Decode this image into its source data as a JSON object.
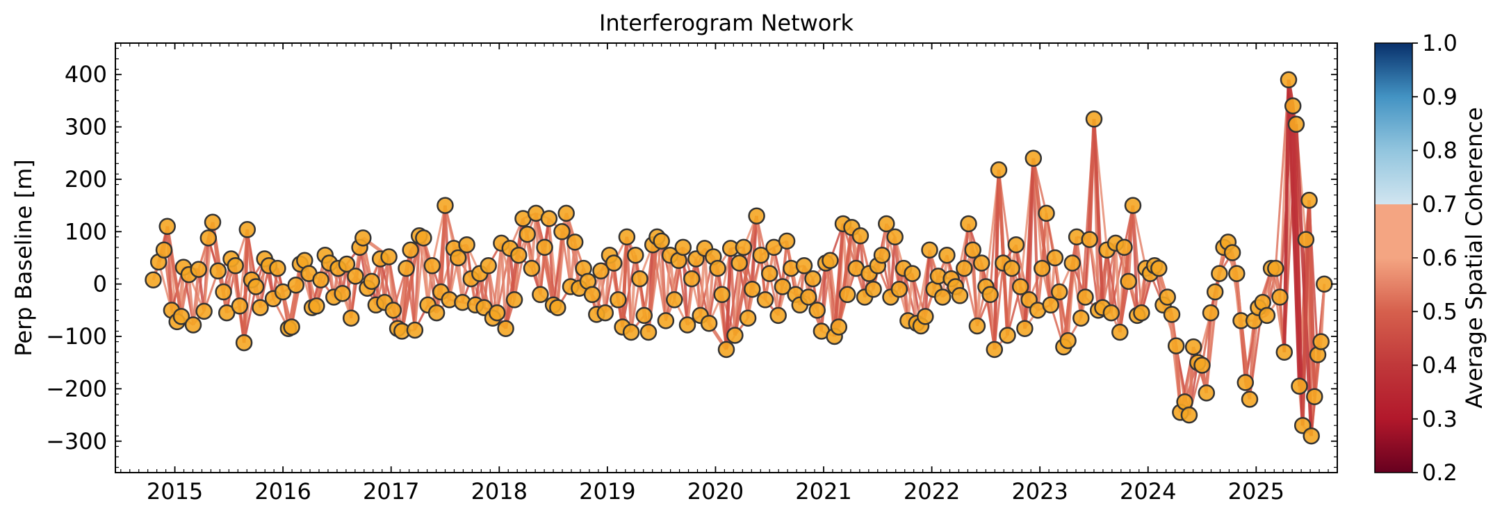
{
  "chart_data": {
    "type": "scatter",
    "title": "Interferogram Network",
    "ylabel": "Perp Baseline [m]",
    "xlabel": "",
    "xlim": [
      2014.45,
      2025.75
    ],
    "ylim": [
      -360,
      460
    ],
    "x_ticks": [
      "2015",
      "2016",
      "2017",
      "2018",
      "2019",
      "2020",
      "2021",
      "2022",
      "2023",
      "2024",
      "2025"
    ],
    "y_ticks": [
      "400",
      "300",
      "200",
      "100",
      "0",
      "−100",
      "−200",
      "−300"
    ],
    "y_tick_values": [
      400,
      300,
      200,
      100,
      0,
      -100,
      -200,
      -300
    ],
    "colorbar": {
      "label": "Average Spatial Coherence",
      "range": [
        0.2,
        1.0
      ],
      "ticks": [
        "1.0",
        "0.9",
        "0.8",
        "0.7",
        "0.6",
        "0.5",
        "0.4",
        "0.3",
        "0.2"
      ],
      "tick_values": [
        1.0,
        0.9,
        0.8,
        0.7,
        0.6,
        0.5,
        0.4,
        0.3,
        0.2
      ],
      "colormap": "RdBu (diverging, red low / blue high)",
      "top_color": "#08306b",
      "mid_color": "#f7f7f7",
      "bottom_color": "#67001f"
    },
    "marker_fill": "#f5a623",
    "marker_edge": "#333333",
    "edge_color_typical": "#d9604f",
    "acquisitions": [
      [
        2014.8,
        8
      ],
      [
        2014.85,
        42
      ],
      [
        2014.9,
        65
      ],
      [
        2014.93,
        110
      ],
      [
        2014.97,
        -50
      ],
      [
        2015.02,
        -72
      ],
      [
        2015.06,
        -62
      ],
      [
        2015.08,
        32
      ],
      [
        2015.13,
        18
      ],
      [
        2015.17,
        -78
      ],
      [
        2015.22,
        28
      ],
      [
        2015.27,
        -52
      ],
      [
        2015.31,
        88
      ],
      [
        2015.35,
        118
      ],
      [
        2015.4,
        25
      ],
      [
        2015.45,
        -15
      ],
      [
        2015.48,
        -55
      ],
      [
        2015.52,
        48
      ],
      [
        2015.56,
        35
      ],
      [
        2015.6,
        -42
      ],
      [
        2015.64,
        -112
      ],
      [
        2015.67,
        104
      ],
      [
        2015.71,
        8
      ],
      [
        2015.75,
        -5
      ],
      [
        2015.79,
        -45
      ],
      [
        2015.83,
        48
      ],
      [
        2015.87,
        35
      ],
      [
        2015.91,
        -28
      ],
      [
        2015.95,
        30
      ],
      [
        2016.0,
        -15
      ],
      [
        2016.05,
        -85
      ],
      [
        2016.08,
        -82
      ],
      [
        2016.12,
        -2
      ],
      [
        2016.16,
        38
      ],
      [
        2016.2,
        45
      ],
      [
        2016.24,
        20
      ],
      [
        2016.27,
        -45
      ],
      [
        2016.31,
        -42
      ],
      [
        2016.35,
        8
      ],
      [
        2016.39,
        55
      ],
      [
        2016.43,
        40
      ],
      [
        2016.47,
        -25
      ],
      [
        2016.51,
        30
      ],
      [
        2016.55,
        -18
      ],
      [
        2016.59,
        38
      ],
      [
        2016.63,
        -65
      ],
      [
        2016.67,
        15
      ],
      [
        2016.71,
        70
      ],
      [
        2016.74,
        88
      ],
      [
        2016.78,
        -8
      ],
      [
        2016.82,
        5
      ],
      [
        2016.86,
        -40
      ],
      [
        2016.9,
        48
      ],
      [
        2016.94,
        -35
      ],
      [
        2016.98,
        52
      ],
      [
        2017.02,
        -50
      ],
      [
        2017.06,
        -85
      ],
      [
        2017.1,
        -90
      ],
      [
        2017.14,
        30
      ],
      [
        2017.18,
        65
      ],
      [
        2017.22,
        -88
      ],
      [
        2017.26,
        92
      ],
      [
        2017.3,
        88
      ],
      [
        2017.34,
        -40
      ],
      [
        2017.38,
        35
      ],
      [
        2017.42,
        -55
      ],
      [
        2017.46,
        -15
      ],
      [
        2017.5,
        150
      ],
      [
        2017.54,
        -30
      ],
      [
        2017.58,
        68
      ],
      [
        2017.62,
        50
      ],
      [
        2017.66,
        -35
      ],
      [
        2017.7,
        75
      ],
      [
        2017.74,
        10
      ],
      [
        2017.78,
        -40
      ],
      [
        2017.82,
        20
      ],
      [
        2017.86,
        -45
      ],
      [
        2017.9,
        35
      ],
      [
        2017.94,
        -65
      ],
      [
        2017.98,
        -55
      ],
      [
        2018.02,
        78
      ],
      [
        2018.06,
        -85
      ],
      [
        2018.1,
        68
      ],
      [
        2018.14,
        -30
      ],
      [
        2018.18,
        55
      ],
      [
        2018.22,
        125
      ],
      [
        2018.26,
        95
      ],
      [
        2018.3,
        30
      ],
      [
        2018.34,
        135
      ],
      [
        2018.38,
        -20
      ],
      [
        2018.42,
        70
      ],
      [
        2018.46,
        125
      ],
      [
        2018.5,
        -40
      ],
      [
        2018.54,
        -45
      ],
      [
        2018.58,
        100
      ],
      [
        2018.62,
        135
      ],
      [
        2018.66,
        -5
      ],
      [
        2018.7,
        80
      ],
      [
        2018.74,
        -8
      ],
      [
        2018.78,
        30
      ],
      [
        2018.82,
        5
      ],
      [
        2018.86,
        -20
      ],
      [
        2018.9,
        -58
      ],
      [
        2018.94,
        25
      ],
      [
        2018.98,
        -55
      ],
      [
        2019.02,
        55
      ],
      [
        2019.06,
        40
      ],
      [
        2019.1,
        -30
      ],
      [
        2019.14,
        -82
      ],
      [
        2019.18,
        90
      ],
      [
        2019.22,
        -92
      ],
      [
        2019.26,
        55
      ],
      [
        2019.3,
        10
      ],
      [
        2019.34,
        -60
      ],
      [
        2019.38,
        -92
      ],
      [
        2019.42,
        75
      ],
      [
        2019.46,
        90
      ],
      [
        2019.5,
        82
      ],
      [
        2019.54,
        -70
      ],
      [
        2019.58,
        55
      ],
      [
        2019.62,
        -30
      ],
      [
        2019.66,
        45
      ],
      [
        2019.7,
        70
      ],
      [
        2019.74,
        -78
      ],
      [
        2019.78,
        10
      ],
      [
        2019.82,
        48
      ],
      [
        2019.86,
        -60
      ],
      [
        2019.9,
        68
      ],
      [
        2019.94,
        -75
      ],
      [
        2019.98,
        52
      ],
      [
        2020.02,
        30
      ],
      [
        2020.06,
        -20
      ],
      [
        2020.1,
        -125
      ],
      [
        2020.14,
        68
      ],
      [
        2020.18,
        -98
      ],
      [
        2020.22,
        40
      ],
      [
        2020.26,
        70
      ],
      [
        2020.3,
        -65
      ],
      [
        2020.34,
        -10
      ],
      [
        2020.38,
        130
      ],
      [
        2020.42,
        55
      ],
      [
        2020.46,
        -30
      ],
      [
        2020.5,
        20
      ],
      [
        2020.54,
        70
      ],
      [
        2020.58,
        -60
      ],
      [
        2020.62,
        -5
      ],
      [
        2020.66,
        82
      ],
      [
        2020.7,
        30
      ],
      [
        2020.74,
        -20
      ],
      [
        2020.78,
        -40
      ],
      [
        2020.82,
        35
      ],
      [
        2020.86,
        -25
      ],
      [
        2020.9,
        10
      ],
      [
        2020.94,
        -50
      ],
      [
        2020.98,
        -90
      ],
      [
        2021.02,
        40
      ],
      [
        2021.06,
        45
      ],
      [
        2021.1,
        -100
      ],
      [
        2021.14,
        -82
      ],
      [
        2021.18,
        115
      ],
      [
        2021.22,
        -20
      ],
      [
        2021.26,
        108
      ],
      [
        2021.3,
        30
      ],
      [
        2021.34,
        92
      ],
      [
        2021.38,
        -25
      ],
      [
        2021.42,
        20
      ],
      [
        2021.46,
        -10
      ],
      [
        2021.5,
        35
      ],
      [
        2021.54,
        55
      ],
      [
        2021.58,
        115
      ],
      [
        2021.62,
        -25
      ],
      [
        2021.66,
        90
      ],
      [
        2021.7,
        -10
      ],
      [
        2021.74,
        30
      ],
      [
        2021.78,
        -70
      ],
      [
        2021.82,
        20
      ],
      [
        2021.86,
        -75
      ],
      [
        2021.9,
        -80
      ],
      [
        2021.94,
        -62
      ],
      [
        2021.98,
        65
      ],
      [
        2022.02,
        -10
      ],
      [
        2022.06,
        15
      ],
      [
        2022.1,
        -25
      ],
      [
        2022.14,
        55
      ],
      [
        2022.18,
        10
      ],
      [
        2022.22,
        -5
      ],
      [
        2022.26,
        -22
      ],
      [
        2022.3,
        30
      ],
      [
        2022.34,
        115
      ],
      [
        2022.38,
        65
      ],
      [
        2022.42,
        -80
      ],
      [
        2022.46,
        40
      ],
      [
        2022.5,
        -5
      ],
      [
        2022.54,
        -20
      ],
      [
        2022.58,
        -125
      ],
      [
        2022.62,
        218
      ],
      [
        2022.66,
        40
      ],
      [
        2022.7,
        -98
      ],
      [
        2022.74,
        30
      ],
      [
        2022.78,
        75
      ],
      [
        2022.82,
        -5
      ],
      [
        2022.86,
        -85
      ],
      [
        2022.9,
        -30
      ],
      [
        2022.94,
        240
      ],
      [
        2022.98,
        -50
      ],
      [
        2023.02,
        30
      ],
      [
        2023.06,
        135
      ],
      [
        2023.1,
        -40
      ],
      [
        2023.14,
        50
      ],
      [
        2023.18,
        -15
      ],
      [
        2023.22,
        -120
      ],
      [
        2023.26,
        -108
      ],
      [
        2023.3,
        40
      ],
      [
        2023.34,
        90
      ],
      [
        2023.38,
        -65
      ],
      [
        2023.42,
        -25
      ],
      [
        2023.46,
        85
      ],
      [
        2023.5,
        315
      ],
      [
        2023.54,
        -50
      ],
      [
        2023.58,
        -45
      ],
      [
        2023.62,
        65
      ],
      [
        2023.66,
        -55
      ],
      [
        2023.7,
        78
      ],
      [
        2023.74,
        -92
      ],
      [
        2023.78,
        70
      ],
      [
        2023.82,
        5
      ],
      [
        2023.86,
        150
      ],
      [
        2023.9,
        -60
      ],
      [
        2023.94,
        -55
      ],
      [
        2023.98,
        30
      ],
      [
        2024.02,
        20
      ],
      [
        2024.06,
        35
      ],
      [
        2024.1,
        30
      ],
      [
        2024.14,
        -40
      ],
      [
        2024.18,
        -25
      ],
      [
        2024.22,
        -58
      ],
      [
        2024.26,
        -118
      ],
      [
        2024.3,
        -245
      ],
      [
        2024.34,
        -225
      ],
      [
        2024.38,
        -250
      ],
      [
        2024.42,
        -120
      ],
      [
        2024.46,
        -150
      ],
      [
        2024.5,
        -155
      ],
      [
        2024.54,
        -208
      ],
      [
        2024.58,
        -55
      ],
      [
        2024.62,
        -15
      ],
      [
        2024.66,
        20
      ],
      [
        2024.7,
        70
      ],
      [
        2024.74,
        80
      ],
      [
        2024.78,
        60
      ],
      [
        2024.82,
        20
      ],
      [
        2024.86,
        -70
      ],
      [
        2024.9,
        -188
      ],
      [
        2024.94,
        -220
      ],
      [
        2024.98,
        -70
      ],
      [
        2025.02,
        -45
      ],
      [
        2025.06,
        -35
      ],
      [
        2025.1,
        -60
      ],
      [
        2025.14,
        30
      ],
      [
        2025.18,
        30
      ],
      [
        2025.22,
        -25
      ],
      [
        2025.26,
        -130
      ],
      [
        2025.3,
        390
      ],
      [
        2025.34,
        340
      ],
      [
        2025.37,
        305
      ],
      [
        2025.4,
        -195
      ],
      [
        2025.43,
        -270
      ],
      [
        2025.46,
        85
      ],
      [
        2025.49,
        160
      ],
      [
        2025.51,
        -290
      ],
      [
        2025.54,
        -215
      ],
      [
        2025.57,
        -135
      ],
      [
        2025.6,
        -110
      ],
      [
        2025.63,
        0
      ]
    ],
    "edges": [
      [
        2014.93,
        110,
        2015.06,
        -62,
        0.52
      ],
      [
        2015.35,
        118,
        2015.48,
        -55,
        0.55
      ],
      [
        2015.64,
        -112,
        2015.67,
        104,
        0.5
      ],
      [
        2016.05,
        -85,
        2016.2,
        45,
        0.55
      ],
      [
        2016.74,
        88,
        2016.98,
        52,
        0.58
      ],
      [
        2017.1,
        -90,
        2017.26,
        92,
        0.5
      ],
      [
        2017.46,
        -15,
        2017.5,
        150,
        0.52
      ],
      [
        2018.06,
        -85,
        2018.22,
        125,
        0.48
      ],
      [
        2018.34,
        135,
        2018.5,
        -40,
        0.52
      ],
      [
        2018.62,
        135,
        2018.7,
        80,
        0.58
      ],
      [
        2019.14,
        -82,
        2019.18,
        90,
        0.5
      ],
      [
        2019.38,
        -92,
        2019.46,
        90,
        0.52
      ],
      [
        2019.94,
        -75,
        2020.1,
        -125,
        0.55
      ],
      [
        2020.1,
        -125,
        2020.14,
        68,
        0.45
      ],
      [
        2020.18,
        -98,
        2020.38,
        130,
        0.5
      ],
      [
        2021.1,
        -100,
        2021.18,
        115,
        0.48
      ],
      [
        2021.14,
        -82,
        2021.26,
        108,
        0.5
      ],
      [
        2022.58,
        -125,
        2022.62,
        218,
        0.48
      ],
      [
        2022.62,
        218,
        2022.7,
        -98,
        0.5
      ],
      [
        2022.86,
        -85,
        2022.94,
        240,
        0.46
      ],
      [
        2022.94,
        240,
        2023.1,
        -40,
        0.5
      ],
      [
        2023.22,
        -120,
        2023.34,
        90,
        0.52
      ],
      [
        2023.46,
        85,
        2023.5,
        315,
        0.48
      ],
      [
        2023.5,
        315,
        2023.58,
        -45,
        0.46
      ],
      [
        2023.74,
        -92,
        2023.86,
        150,
        0.5
      ],
      [
        2024.26,
        -118,
        2024.3,
        -245,
        0.55
      ],
      [
        2024.38,
        -250,
        2024.42,
        -120,
        0.55
      ],
      [
        2024.5,
        -155,
        2024.54,
        -208,
        0.55
      ],
      [
        2024.86,
        -70,
        2024.94,
        -220,
        0.52
      ],
      [
        2025.26,
        -130,
        2025.3,
        390,
        0.38
      ],
      [
        2025.3,
        390,
        2025.4,
        -195,
        0.36
      ],
      [
        2025.34,
        340,
        2025.43,
        -270,
        0.37
      ],
      [
        2025.37,
        305,
        2025.51,
        -290,
        0.4
      ],
      [
        2025.3,
        390,
        2025.34,
        340,
        0.4
      ],
      [
        2025.43,
        -270,
        2025.49,
        160,
        0.45
      ],
      [
        2025.49,
        160,
        2025.54,
        -215,
        0.48
      ]
    ]
  }
}
